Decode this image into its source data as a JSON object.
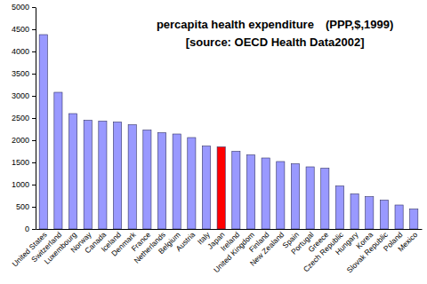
{
  "chart_data": {
    "type": "bar",
    "title": "percapita health expenditure　(PPP,$,1999)",
    "subtitle": "[source: OECD Health Data2002]",
    "categories": [
      "United States",
      "Switzerland",
      "Luxembourg",
      "Norway",
      "Canada",
      "Iceland",
      "Denmark",
      "France",
      "Netherlands",
      "Belgium",
      "Austria",
      "Italy",
      "Japan",
      "Ireland",
      "United Kingdom",
      "Finland",
      "New Zealand",
      "Spain",
      "Portugal",
      "Greece",
      "Czech Republic",
      "Hungary",
      "Korea",
      "Slovak Republic",
      "Poland",
      "Mexico"
    ],
    "values": [
      4380,
      3080,
      2600,
      2450,
      2430,
      2410,
      2350,
      2230,
      2170,
      2140,
      2060,
      1870,
      1850,
      1750,
      1670,
      1600,
      1520,
      1470,
      1400,
      1370,
      970,
      790,
      730,
      650,
      540,
      450
    ],
    "colors": [
      "#9999ff",
      "#9999ff",
      "#9999ff",
      "#9999ff",
      "#9999ff",
      "#9999ff",
      "#9999ff",
      "#9999ff",
      "#9999ff",
      "#9999ff",
      "#9999ff",
      "#9999ff",
      "#ff0000",
      "#9999ff",
      "#9999ff",
      "#9999ff",
      "#9999ff",
      "#9999ff",
      "#9999ff",
      "#9999ff",
      "#9999ff",
      "#9999ff",
      "#9999ff",
      "#9999ff",
      "#9999ff",
      "#9999ff"
    ],
    "ylim": [
      0,
      5000
    ],
    "yticks": [
      0,
      500,
      1000,
      1500,
      2000,
      2500,
      3000,
      3500,
      4000,
      4500,
      5000
    ],
    "grid": false
  }
}
